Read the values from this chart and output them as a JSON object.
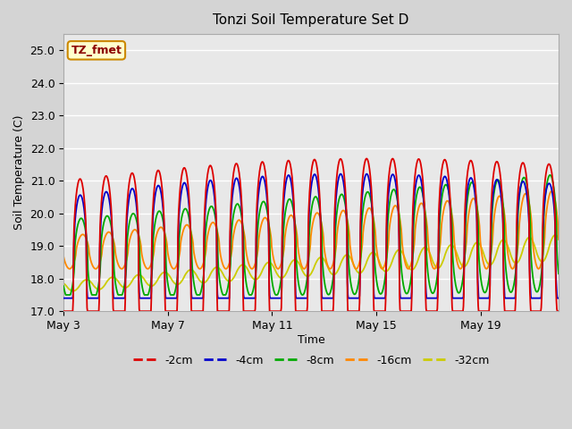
{
  "title": "Tonzi Soil Temperature Set D",
  "xlabel": "Time",
  "ylabel": "Soil Temperature (C)",
  "ylim": [
    17.0,
    25.5
  ],
  "yticks": [
    17.0,
    18.0,
    19.0,
    20.0,
    21.0,
    22.0,
    23.0,
    24.0,
    25.0
  ],
  "xtick_labels": [
    "May 3",
    "May 7",
    "May 11",
    "May 15",
    "May 19"
  ],
  "xtick_positions": [
    0,
    4,
    8,
    12,
    16
  ],
  "xlim": [
    0,
    19
  ],
  "legend_labels": [
    "-2cm",
    "-4cm",
    "-8cm",
    "-16cm",
    "-32cm"
  ],
  "legend_colors": [
    "#dd0000",
    "#0000cc",
    "#00aa00",
    "#ff8800",
    "#cccc00"
  ],
  "annotation_text": "TZ_fmet",
  "annotation_bg": "#ffffcc",
  "annotation_border": "#cc8800",
  "fig_bg": "#d4d4d4",
  "plot_bg": "#e8e8e8",
  "grid_color": "#ffffff"
}
